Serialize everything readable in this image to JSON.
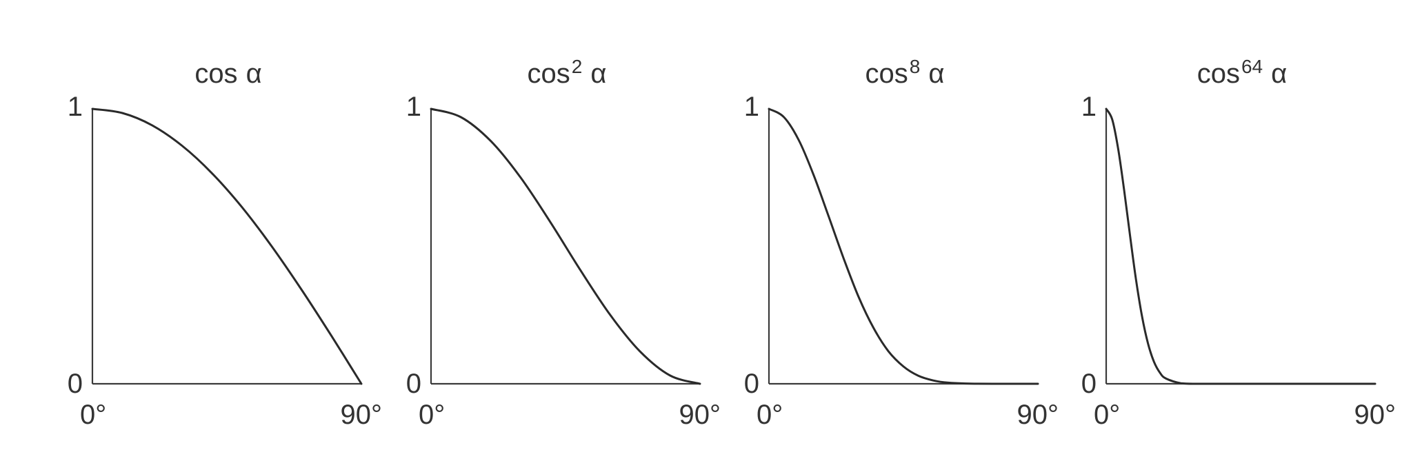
{
  "chart_data": [
    {
      "type": "line",
      "title": "cos α",
      "title_base": "cos",
      "exponent": "",
      "title_var": "α",
      "x_ticks": [
        "0°",
        "90°"
      ],
      "y_ticks": [
        "0",
        "1"
      ],
      "xlim": [
        0,
        90
      ],
      "ylim": [
        0,
        1
      ],
      "series": [
        {
          "x": [
            0,
            10,
            20,
            30,
            40,
            50,
            60,
            70,
            80,
            90
          ],
          "y": [
            1.0,
            0.985,
            0.94,
            0.866,
            0.766,
            0.643,
            0.5,
            0.342,
            0.174,
            0.0
          ]
        }
      ]
    },
    {
      "type": "line",
      "title": "cos2 α",
      "title_base": "cos",
      "exponent": "2",
      "title_var": "α",
      "x_ticks": [
        "0°",
        "90°"
      ],
      "y_ticks": [
        "0",
        "1"
      ],
      "xlim": [
        0,
        90
      ],
      "ylim": [
        0,
        1
      ],
      "series": [
        {
          "x": [
            0,
            10,
            20,
            30,
            40,
            50,
            60,
            70,
            80,
            90
          ],
          "y": [
            1.0,
            0.97,
            0.883,
            0.75,
            0.587,
            0.413,
            0.25,
            0.117,
            0.03,
            0.0
          ]
        }
      ]
    },
    {
      "type": "line",
      "title": "cos8 α",
      "title_base": "cos",
      "exponent": "8",
      "title_var": "α",
      "x_ticks": [
        "0°",
        "90°"
      ],
      "y_ticks": [
        "0",
        "1"
      ],
      "xlim": [
        0,
        90
      ],
      "ylim": [
        0,
        1
      ],
      "series": [
        {
          "x": [
            0,
            5,
            10,
            15,
            20,
            25,
            30,
            35,
            40,
            45,
            50,
            55,
            60,
            70,
            80,
            90
          ],
          "y": [
            1.0,
            0.97,
            0.886,
            0.758,
            0.608,
            0.456,
            0.316,
            0.203,
            0.118,
            0.063,
            0.029,
            0.012,
            0.004,
            0.0002,
            0.0,
            0.0
          ]
        }
      ]
    },
    {
      "type": "line",
      "title": "cos64 α",
      "title_base": "cos",
      "exponent": "64",
      "title_var": "α",
      "x_ticks": [
        "0°",
        "90°"
      ],
      "y_ticks": [
        "0",
        "1"
      ],
      "xlim": [
        0,
        90
      ],
      "ylim": [
        0,
        1
      ],
      "series": [
        {
          "x": [
            0,
            2,
            4,
            6,
            8,
            10,
            12,
            14,
            16,
            18,
            20,
            25,
            30,
            40,
            60,
            90
          ],
          "y": [
            1.0,
            0.962,
            0.856,
            0.705,
            0.537,
            0.378,
            0.245,
            0.146,
            0.08,
            0.04,
            0.019,
            0.002,
            0.0,
            0.0,
            0.0,
            0.0
          ]
        }
      ]
    }
  ]
}
